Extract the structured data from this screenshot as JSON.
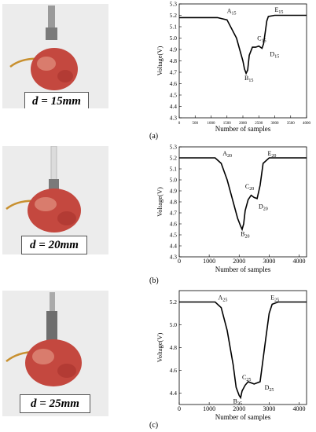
{
  "captions": [
    "(a)",
    "(b)",
    "(c)"
  ],
  "photo_labels": [
    "d = 15mm",
    "d = 20mm",
    "d = 25mm"
  ],
  "colors": {
    "apple_red": "#c4483f",
    "apple_light": "#e8a08c",
    "line": "#000000",
    "frame": "#000000"
  },
  "chart_data": [
    {
      "type": "line",
      "xlabel": "Number of samples",
      "ylabel": "Voltage(V)",
      "xlim": [
        0,
        4000
      ],
      "ylim": [
        4.3,
        5.3
      ],
      "xticks": [
        "0",
        "500",
        "1000",
        "1500",
        "2000",
        "2500",
        "3000",
        "3500",
        "4000"
      ],
      "xtick_values": [
        0,
        500,
        1000,
        1500,
        2000,
        2500,
        3000,
        3500,
        4000
      ],
      "yticks": [
        "4.3",
        "4.4",
        "4.5",
        "4.6",
        "4.7",
        "4.8",
        "4.9",
        "5.0",
        "5.1",
        "5.2",
        "5.3"
      ],
      "ytick_values": [
        4.3,
        4.4,
        4.5,
        4.6,
        4.7,
        4.8,
        4.9,
        5.0,
        5.1,
        5.2,
        5.3
      ],
      "x": [
        0,
        400,
        800,
        1200,
        1500,
        1800,
        1900,
        2000,
        2050,
        2100,
        2150,
        2200,
        2300,
        2400,
        2500,
        2600,
        2650,
        2700,
        2750,
        2800,
        3000,
        4000
      ],
      "y": [
        5.18,
        5.18,
        5.18,
        5.18,
        5.16,
        5.0,
        4.9,
        4.8,
        4.73,
        4.69,
        4.72,
        4.85,
        4.92,
        4.92,
        4.93,
        4.91,
        4.95,
        5.05,
        5.15,
        5.19,
        5.2,
        5.2
      ],
      "annotations": [
        {
          "base": "A",
          "sub": "15",
          "x": 1500,
          "y": 5.22
        },
        {
          "base": "B",
          "sub": "15",
          "x": 2050,
          "y": 4.63
        },
        {
          "base": "C",
          "sub": "15",
          "x": 2450,
          "y": 4.98
        },
        {
          "base": "D",
          "sub": "15",
          "x": 2850,
          "y": 4.84
        },
        {
          "base": "E",
          "sub": "15",
          "x": 3000,
          "y": 5.23
        }
      ]
    },
    {
      "type": "line",
      "xlabel": "Number of samples",
      "ylabel": "Voltage(V)",
      "xlim": [
        0,
        4250
      ],
      "ylim": [
        4.3,
        5.3
      ],
      "xticks": [
        "0",
        "1000",
        "2000",
        "3000",
        "4000"
      ],
      "xtick_values": [
        0,
        1000,
        2000,
        3000,
        4000
      ],
      "yticks": [
        "4.3",
        "4.4",
        "4.5",
        "4.6",
        "4.7",
        "4.8",
        "4.9",
        "5.0",
        "5.1",
        "5.2",
        "5.3"
      ],
      "ytick_values": [
        4.3,
        4.4,
        4.5,
        4.6,
        4.7,
        4.8,
        4.9,
        5.0,
        5.1,
        5.2,
        5.3
      ],
      "x": [
        0,
        400,
        800,
        1200,
        1400,
        1600,
        1800,
        1950,
        2050,
        2100,
        2150,
        2200,
        2300,
        2400,
        2500,
        2600,
        2700,
        2800,
        3000,
        4250
      ],
      "y": [
        5.2,
        5.2,
        5.2,
        5.2,
        5.15,
        5.0,
        4.8,
        4.65,
        4.58,
        4.55,
        4.6,
        4.72,
        4.82,
        4.86,
        4.84,
        4.83,
        4.95,
        5.15,
        5.2,
        5.2
      ],
      "annotations": [
        {
          "base": "A",
          "sub": "20",
          "x": 1450,
          "y": 5.22
        },
        {
          "base": "B",
          "sub": "20",
          "x": 2050,
          "y": 4.49
        },
        {
          "base": "C",
          "sub": "20",
          "x": 2200,
          "y": 4.92
        },
        {
          "base": "D",
          "sub": "20",
          "x": 2650,
          "y": 4.74
        },
        {
          "base": "E",
          "sub": "20",
          "x": 2950,
          "y": 5.22
        }
      ]
    },
    {
      "type": "line",
      "xlabel": "Number of samples",
      "ylabel": "Voltage(V)",
      "xlim": [
        0,
        4250
      ],
      "ylim": [
        4.3,
        5.3
      ],
      "xticks": [
        "0",
        "1000",
        "2000",
        "3000",
        "4000"
      ],
      "xtick_values": [
        0,
        1000,
        2000,
        3000,
        4000
      ],
      "yticks": [
        "4.4",
        "4.6",
        "4.8",
        "5.0",
        "5.2"
      ],
      "ytick_values": [
        4.4,
        4.6,
        4.8,
        5.0,
        5.2
      ],
      "x": [
        0,
        400,
        800,
        1200,
        1400,
        1600,
        1800,
        1900,
        2000,
        2050,
        2100,
        2200,
        2300,
        2500,
        2700,
        2800,
        2900,
        3000,
        3100,
        3300,
        4250
      ],
      "y": [
        5.2,
        5.2,
        5.2,
        5.2,
        5.15,
        4.95,
        4.65,
        4.45,
        4.38,
        4.36,
        4.42,
        4.47,
        4.5,
        4.48,
        4.5,
        4.7,
        4.9,
        5.1,
        5.18,
        5.2,
        5.2
      ],
      "annotations": [
        {
          "base": "A",
          "sub": "25",
          "x": 1300,
          "y": 5.22
        },
        {
          "base": "B",
          "sub": "25",
          "x": 1800,
          "y": 4.31
        },
        {
          "base": "C",
          "sub": "25",
          "x": 2100,
          "y": 4.52
        },
        {
          "base": "D",
          "sub": "25",
          "x": 2850,
          "y": 4.43
        },
        {
          "base": "E",
          "sub": "25",
          "x": 3050,
          "y": 5.22
        }
      ]
    }
  ]
}
